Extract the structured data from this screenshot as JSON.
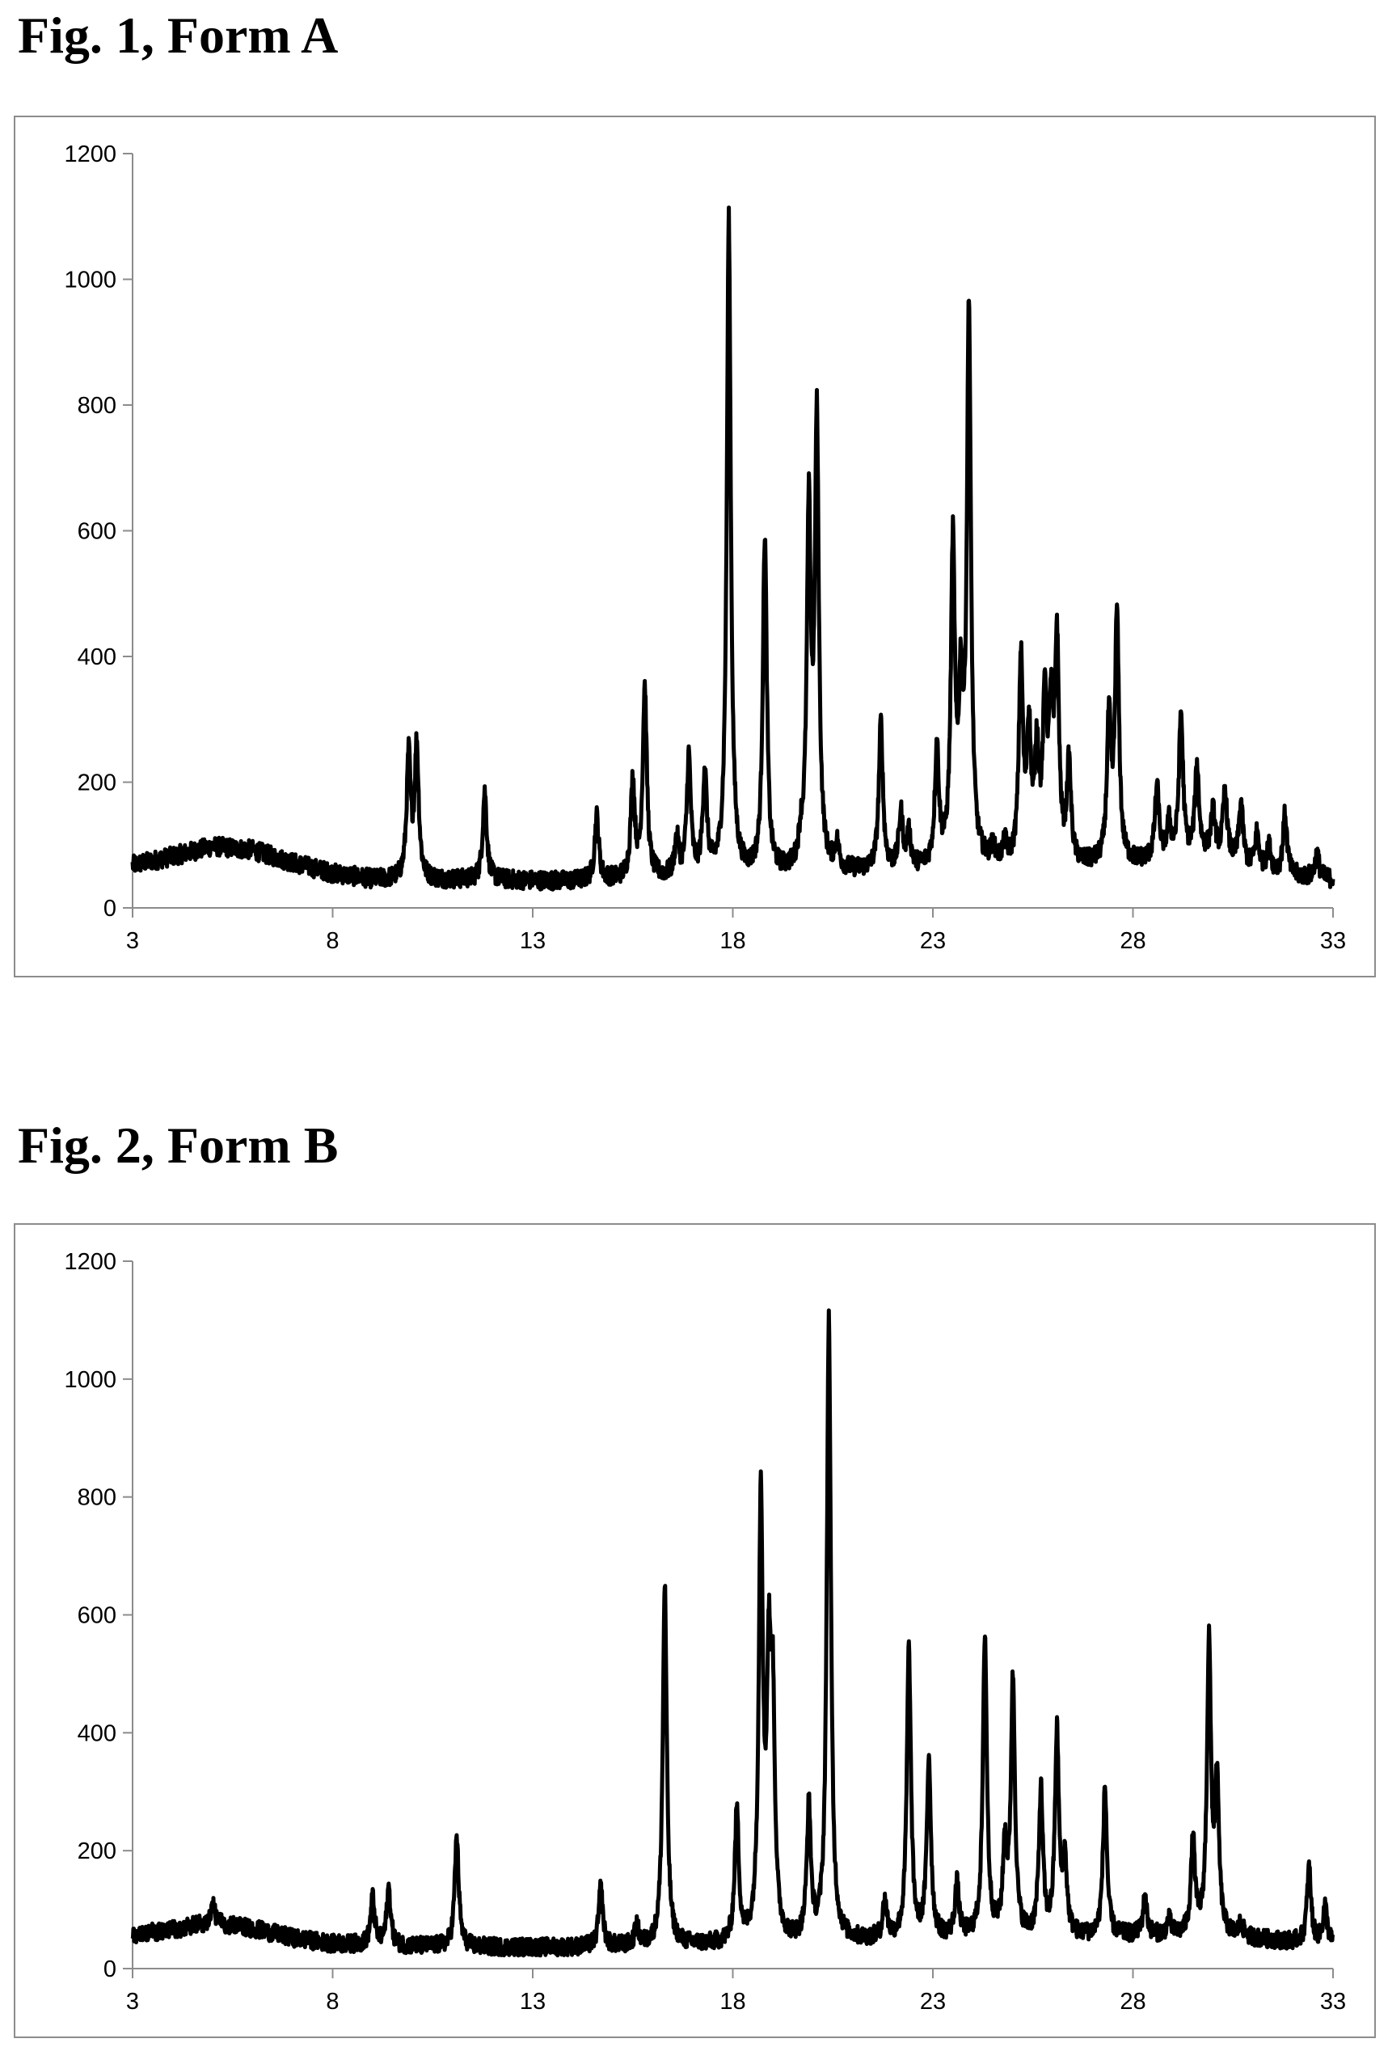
{
  "figures": [
    {
      "title": "Fig. 1, Form A",
      "chart_data": {
        "type": "line",
        "title": "",
        "xlabel": "",
        "ylabel": "",
        "xlim": [
          3,
          33
        ],
        "ylim": [
          0,
          1200
        ],
        "x_ticks": [
          3,
          8,
          13,
          18,
          23,
          28,
          33
        ],
        "y_ticks": [
          0,
          200,
          400,
          600,
          800,
          1000,
          1200
        ],
        "grid": false,
        "legend": "none",
        "line_color": "#000000",
        "background_profile": [
          [
            3,
            68
          ],
          [
            4,
            82
          ],
          [
            5,
            98
          ],
          [
            6,
            92
          ],
          [
            7,
            72
          ],
          [
            8,
            55
          ],
          [
            9,
            45
          ],
          [
            10,
            44
          ],
          [
            12,
            44
          ],
          [
            14,
            42
          ],
          [
            16,
            46
          ],
          [
            18,
            50
          ],
          [
            20,
            55
          ],
          [
            22,
            58
          ],
          [
            24,
            65
          ],
          [
            26,
            62
          ],
          [
            28,
            70
          ],
          [
            30,
            85
          ],
          [
            31,
            60
          ],
          [
            32,
            50
          ],
          [
            33,
            45
          ]
        ],
        "peaks": [
          {
            "x": 9.9,
            "y": 240
          },
          {
            "x": 10.1,
            "y": 255
          },
          {
            "x": 11.8,
            "y": 185
          },
          {
            "x": 14.6,
            "y": 145
          },
          {
            "x": 15.5,
            "y": 200
          },
          {
            "x": 15.8,
            "y": 348
          },
          {
            "x": 16.6,
            "y": 105
          },
          {
            "x": 16.9,
            "y": 237
          },
          {
            "x": 17.3,
            "y": 212
          },
          {
            "x": 17.9,
            "y": 1093
          },
          {
            "x": 18.8,
            "y": 585
          },
          {
            "x": 19.7,
            "y": 90
          },
          {
            "x": 19.9,
            "y": 612
          },
          {
            "x": 20.1,
            "y": 760
          },
          {
            "x": 20.6,
            "y": 95
          },
          {
            "x": 21.7,
            "y": 293
          },
          {
            "x": 22.2,
            "y": 145
          },
          {
            "x": 22.4,
            "y": 110
          },
          {
            "x": 23.1,
            "y": 250
          },
          {
            "x": 23.5,
            "y": 562
          },
          {
            "x": 23.7,
            "y": 310
          },
          {
            "x": 23.9,
            "y": 945
          },
          {
            "x": 24.5,
            "y": 88
          },
          {
            "x": 24.8,
            "y": 92
          },
          {
            "x": 25.2,
            "y": 385
          },
          {
            "x": 25.4,
            "y": 268
          },
          {
            "x": 25.6,
            "y": 235
          },
          {
            "x": 25.8,
            "y": 312
          },
          {
            "x": 25.95,
            "y": 275
          },
          {
            "x": 26.1,
            "y": 410
          },
          {
            "x": 26.4,
            "y": 220
          },
          {
            "x": 27.4,
            "y": 290
          },
          {
            "x": 27.6,
            "y": 458
          },
          {
            "x": 28.6,
            "y": 190
          },
          {
            "x": 28.9,
            "y": 130
          },
          {
            "x": 29.2,
            "y": 305
          },
          {
            "x": 29.6,
            "y": 222
          },
          {
            "x": 30.0,
            "y": 150
          },
          {
            "x": 30.3,
            "y": 185
          },
          {
            "x": 30.7,
            "y": 165
          },
          {
            "x": 31.1,
            "y": 118
          },
          {
            "x": 31.4,
            "y": 95
          },
          {
            "x": 31.8,
            "y": 148
          },
          {
            "x": 32.6,
            "y": 85
          }
        ]
      }
    },
    {
      "title": "Fig. 2, Form B",
      "chart_data": {
        "type": "line",
        "title": "",
        "xlabel": "",
        "ylabel": "",
        "xlim": [
          3,
          33
        ],
        "ylim": [
          0,
          1200
        ],
        "x_ticks": [
          3,
          8,
          13,
          18,
          23,
          28,
          33
        ],
        "y_ticks": [
          0,
          200,
          400,
          600,
          800,
          1000,
          1200
        ],
        "grid": false,
        "legend": "none",
        "line_color": "#000000",
        "background_profile": [
          [
            3,
            58
          ],
          [
            4,
            66
          ],
          [
            5,
            78
          ],
          [
            6,
            68
          ],
          [
            7,
            52
          ],
          [
            8,
            42
          ],
          [
            10,
            38
          ],
          [
            12,
            36
          ],
          [
            14,
            36
          ],
          [
            16,
            38
          ],
          [
            18,
            40
          ],
          [
            20,
            44
          ],
          [
            22,
            48
          ],
          [
            24,
            52
          ],
          [
            26,
            52
          ],
          [
            28,
            55
          ],
          [
            30,
            55
          ],
          [
            32,
            45
          ],
          [
            33,
            42
          ]
        ],
        "peaks": [
          {
            "x": 5.0,
            "y": 110
          },
          {
            "x": 9.0,
            "y": 120
          },
          {
            "x": 9.4,
            "y": 135
          },
          {
            "x": 11.1,
            "y": 225
          },
          {
            "x": 14.7,
            "y": 138
          },
          {
            "x": 15.6,
            "y": 70
          },
          {
            "x": 16.3,
            "y": 652
          },
          {
            "x": 18.1,
            "y": 265
          },
          {
            "x": 18.7,
            "y": 795
          },
          {
            "x": 18.9,
            "y": 460
          },
          {
            "x": 19.0,
            "y": 405
          },
          {
            "x": 19.9,
            "y": 268
          },
          {
            "x": 20.4,
            "y": 1100
          },
          {
            "x": 21.8,
            "y": 112
          },
          {
            "x": 22.4,
            "y": 540
          },
          {
            "x": 22.9,
            "y": 355
          },
          {
            "x": 23.6,
            "y": 140
          },
          {
            "x": 24.3,
            "y": 565
          },
          {
            "x": 24.8,
            "y": 195
          },
          {
            "x": 25.0,
            "y": 482
          },
          {
            "x": 25.7,
            "y": 300
          },
          {
            "x": 26.1,
            "y": 395
          },
          {
            "x": 26.3,
            "y": 175
          },
          {
            "x": 27.3,
            "y": 305
          },
          {
            "x": 28.3,
            "y": 120
          },
          {
            "x": 28.9,
            "y": 80
          },
          {
            "x": 29.5,
            "y": 215
          },
          {
            "x": 29.9,
            "y": 548
          },
          {
            "x": 30.1,
            "y": 305
          },
          {
            "x": 30.7,
            "y": 75
          },
          {
            "x": 32.4,
            "y": 170
          },
          {
            "x": 32.8,
            "y": 105
          }
        ]
      }
    }
  ]
}
